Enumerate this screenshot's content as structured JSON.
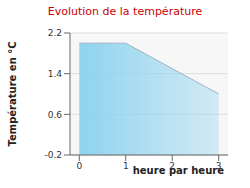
{
  "chart_data": {
    "type": "area",
    "title": "Evolution de la température",
    "x_label": "heure par heure",
    "y_label": "Température en °C",
    "x": [
      0,
      1,
      2,
      3
    ],
    "values": [
      2.0,
      2.0,
      1.5,
      1.0
    ],
    "color": "#8fd3ee",
    "xlim": [
      -0.2,
      3.2
    ],
    "xticks": [
      0,
      1,
      2,
      3
    ],
    "ylim": [
      -0.2,
      2.2
    ],
    "yticks": [
      -0.2,
      0.6,
      1.4,
      2.2
    ],
    "grid": true
  }
}
